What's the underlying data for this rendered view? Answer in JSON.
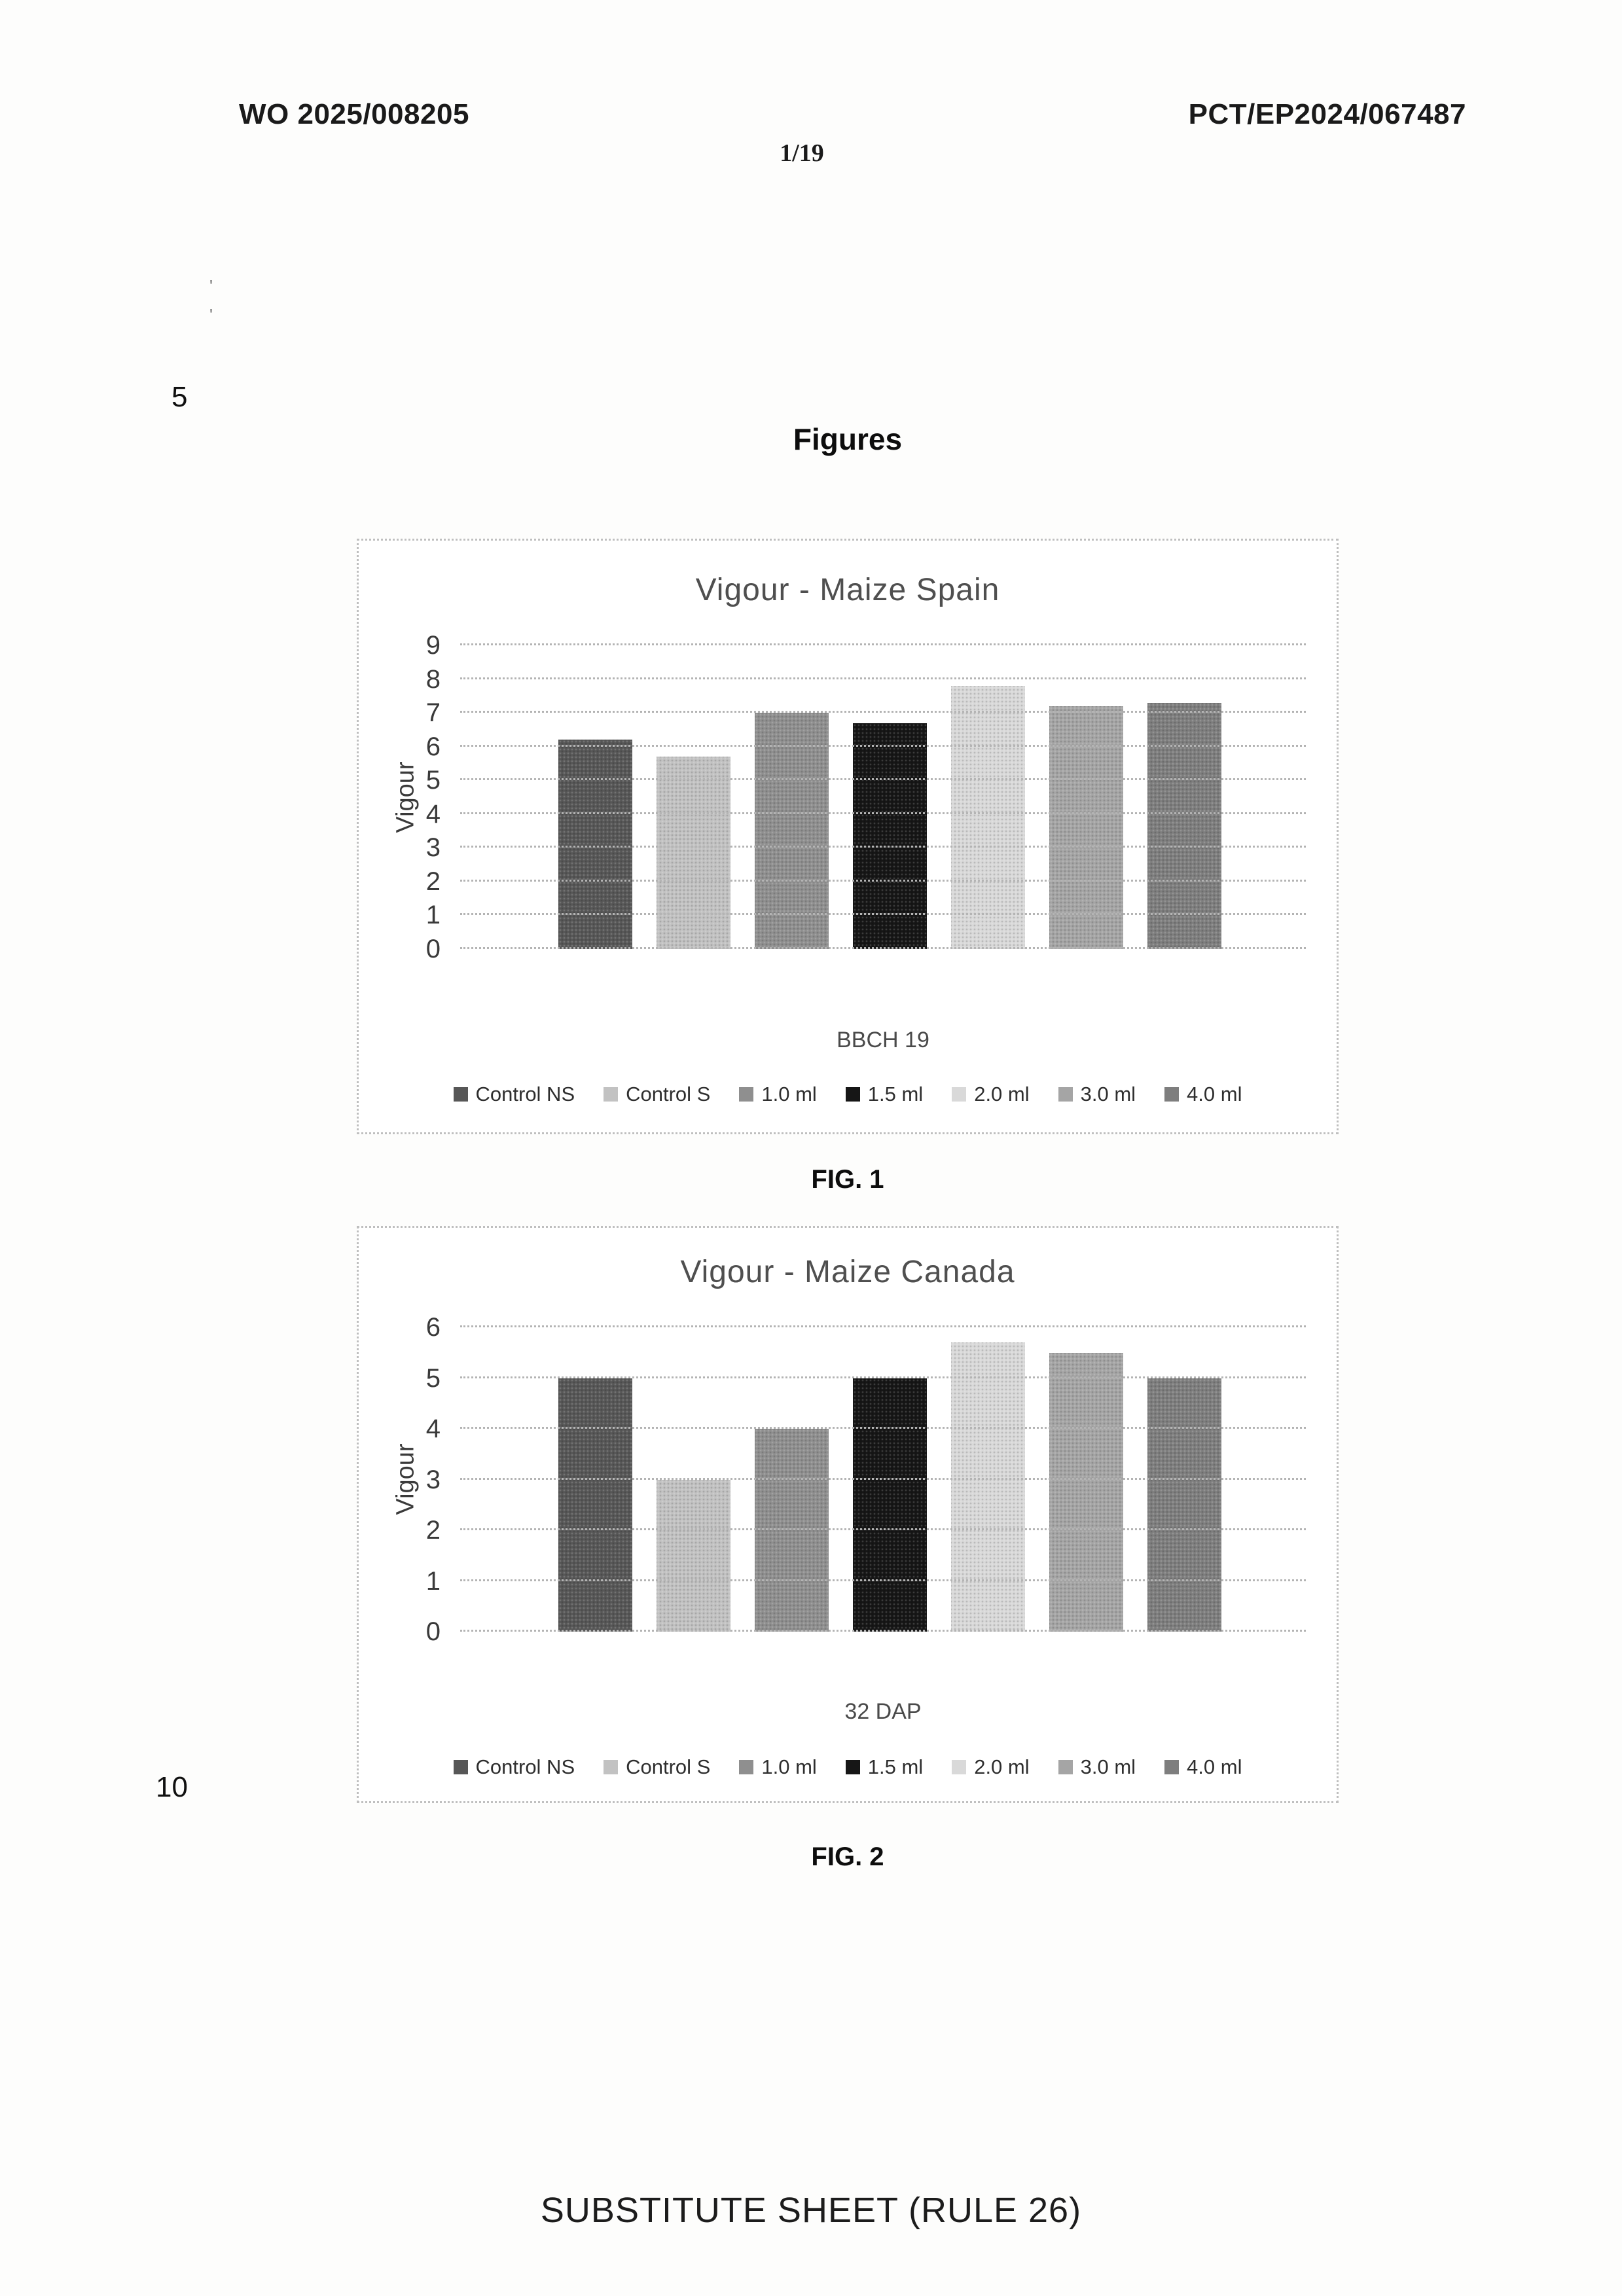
{
  "page": {
    "header_left": "WO 2025/008205",
    "header_right": "PCT/EP2024/067487",
    "page_number": "1/19",
    "margin_numbers": [
      "5",
      "10"
    ],
    "scan_marks": [
      "'",
      "'"
    ],
    "section_heading": "Figures",
    "fig1_caption": "FIG. 1",
    "fig2_caption": "FIG. 2",
    "footer": "SUBSTITUTE SHEET (RULE 26)"
  },
  "chart_data": [
    {
      "type": "bar",
      "title": "Vigour - Maize Spain",
      "xlabel": "",
      "ylabel": "Vigour",
      "categories": [
        "BBCH 19"
      ],
      "ylim": [
        0,
        9
      ],
      "yticks": [
        0,
        1,
        2,
        3,
        4,
        5,
        6,
        7,
        8,
        9
      ],
      "grid": true,
      "legend_position": "bottom",
      "series": [
        {
          "name": "Control NS",
          "values": [
            6.2
          ],
          "color": "#575757"
        },
        {
          "name": "Control S",
          "values": [
            5.7
          ],
          "color": "#c2c2c2"
        },
        {
          "name": "1.0 ml",
          "values": [
            7.0
          ],
          "color": "#8f8f8f"
        },
        {
          "name": "1.5 ml",
          "values": [
            6.7
          ],
          "color": "#161616"
        },
        {
          "name": "2.0 ml",
          "values": [
            7.8
          ],
          "color": "#d9d9d9"
        },
        {
          "name": "3.0 ml",
          "values": [
            7.2
          ],
          "color": "#a5a5a5"
        },
        {
          "name": "4.0 ml",
          "values": [
            7.3
          ],
          "color": "#7e7e7e"
        }
      ]
    },
    {
      "type": "bar",
      "title": "Vigour - Maize Canada",
      "xlabel": "",
      "ylabel": "Vigour",
      "categories": [
        "32 DAP"
      ],
      "ylim": [
        0,
        6
      ],
      "yticks": [
        0,
        1,
        2,
        3,
        4,
        5,
        6
      ],
      "grid": true,
      "legend_position": "bottom",
      "series": [
        {
          "name": "Control NS",
          "values": [
            5.0
          ],
          "color": "#575757"
        },
        {
          "name": "Control S",
          "values": [
            3.0
          ],
          "color": "#c2c2c2"
        },
        {
          "name": "1.0 ml",
          "values": [
            4.0
          ],
          "color": "#8f8f8f"
        },
        {
          "name": "1.5 ml",
          "values": [
            5.0
          ],
          "color": "#161616"
        },
        {
          "name": "2.0 ml",
          "values": [
            5.7
          ],
          "color": "#d9d9d9"
        },
        {
          "name": "3.0 ml",
          "values": [
            5.5
          ],
          "color": "#a5a5a5"
        },
        {
          "name": "4.0 ml",
          "values": [
            5.0
          ],
          "color": "#7e7e7e"
        }
      ]
    }
  ]
}
